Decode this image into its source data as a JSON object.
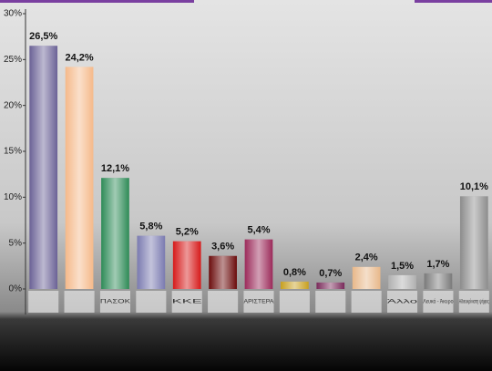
{
  "chart_data": {
    "type": "bar",
    "categories": [
      null,
      null,
      "ΠΑΣΟΚ",
      null,
      "ΚΚΕ",
      null,
      "ΑΡΙΣΤΕΡΑ",
      null,
      null,
      null,
      "Άλλο",
      "Λευκό - Άκυρο",
      "Αδιευκρίνιστη ψήφος"
    ],
    "values": [
      26.5,
      24.2,
      12.1,
      5.8,
      5.2,
      3.6,
      5.4,
      0.8,
      0.7,
      2.4,
      1.5,
      1.7,
      10.1
    ],
    "value_labels": [
      "26,5%",
      "24,2%",
      "12,1%",
      "5,8%",
      "5,2%",
      "3,6%",
      "5,4%",
      "0,8%",
      "0,7%",
      "2,4%",
      "1,5%",
      "1,7%",
      "10,1%"
    ],
    "colors": [
      "#6b6296",
      "#f5b98a",
      "#2e8b57",
      "#7a7ab0",
      "#d61a1a",
      "#6b0c0c",
      "#9b2a5a",
      "#c8a020",
      "#7a2a5a",
      "#e8b88a",
      "#b0b0b0",
      "#7a7a7a",
      "#8c8c8c"
    ],
    "ylim": [
      0,
      30
    ],
    "yticks": [
      {
        "value": 0,
        "label": "0%"
      },
      {
        "value": 5,
        "label": "5%"
      },
      {
        "value": 10,
        "label": "10%"
      },
      {
        "value": 15,
        "label": "15%"
      },
      {
        "value": 20,
        "label": "20%"
      },
      {
        "value": 25,
        "label": "25%"
      },
      {
        "value": 30,
        "label": "30%"
      }
    ]
  }
}
